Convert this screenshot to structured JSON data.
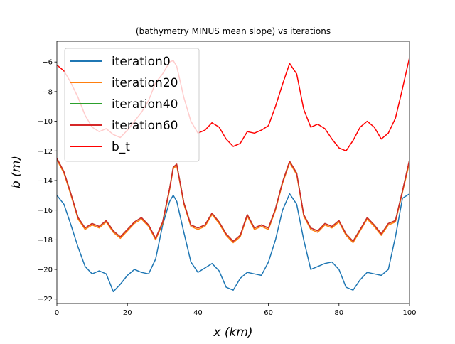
{
  "chart_data": {
    "type": "line",
    "title": "(bathymetry MINUS mean slope) vs iterations",
    "xlabel": "x (km)",
    "ylabel": "b (m)",
    "xlim": [
      0,
      100
    ],
    "ylim": [
      -22.3,
      -4.6
    ],
    "xticks": [
      0,
      20,
      40,
      60,
      80,
      100
    ],
    "yticks": [
      -22,
      -20,
      -18,
      -16,
      -14,
      -12,
      -10,
      -8,
      -6
    ],
    "ytick_labels": [
      "−22",
      "−20",
      "−18",
      "−16",
      "−14",
      "−12",
      "−10",
      "−8",
      "−6"
    ],
    "grid": false,
    "legend_position": "top-left",
    "x": [
      0,
      2,
      4,
      6,
      8,
      10,
      12,
      14,
      16,
      18,
      20,
      22,
      24,
      26,
      28,
      30,
      32,
      33,
      34,
      36,
      38,
      40,
      42,
      44,
      46,
      48,
      50,
      52,
      54,
      56,
      58,
      60,
      62,
      64,
      66,
      68,
      70,
      72,
      74,
      76,
      78,
      80,
      82,
      84,
      86,
      88,
      90,
      92,
      94,
      96,
      98,
      100
    ],
    "series": [
      {
        "name": "iteration0",
        "color": "#1f77b4",
        "values": [
          -15.0,
          -15.6,
          -17.0,
          -18.5,
          -19.8,
          -20.3,
          -20.1,
          -20.3,
          -21.5,
          -21.0,
          -20.4,
          -20.0,
          -20.2,
          -20.3,
          -19.3,
          -17.0,
          -15.4,
          -15.0,
          -15.4,
          -17.5,
          -19.5,
          -20.2,
          -19.9,
          -19.6,
          -20.1,
          -21.2,
          -21.4,
          -20.6,
          -20.2,
          -20.3,
          -20.4,
          -19.5,
          -18.0,
          -16.0,
          -14.9,
          -15.6,
          -18.0,
          -20.0,
          -19.8,
          -19.6,
          -19.5,
          -20.0,
          -21.2,
          -21.4,
          -20.7,
          -20.2,
          -20.3,
          -20.4,
          -20.0,
          -17.8,
          -15.2,
          -14.9
        ]
      },
      {
        "name": "iteration20",
        "color": "#ff7f0e",
        "values": [
          -12.6,
          -13.5,
          -15.0,
          -16.6,
          -17.3,
          -17.0,
          -17.2,
          -16.8,
          -17.5,
          -17.9,
          -17.4,
          -16.9,
          -16.6,
          -17.1,
          -18.0,
          -16.9,
          -14.6,
          -13.2,
          -13.0,
          -15.6,
          -17.1,
          -17.3,
          -17.1,
          -16.3,
          -16.9,
          -17.7,
          -18.2,
          -17.8,
          -16.4,
          -17.3,
          -17.1,
          -17.3,
          -16.0,
          -14.2,
          -12.8,
          -13.6,
          -16.4,
          -17.3,
          -17.5,
          -17.0,
          -17.2,
          -16.8,
          -17.7,
          -18.2,
          -17.4,
          -16.6,
          -17.1,
          -17.7,
          -17.0,
          -16.8,
          -14.8,
          -12.8
        ]
      },
      {
        "name": "iteration40",
        "color": "#2ca02c",
        "values": [
          -12.5,
          -13.4,
          -14.9,
          -16.5,
          -17.2,
          -16.9,
          -17.1,
          -16.7,
          -17.4,
          -17.8,
          -17.3,
          -16.8,
          -16.5,
          -17.0,
          -17.9,
          -16.8,
          -14.5,
          -13.1,
          -12.9,
          -15.5,
          -17.0,
          -17.2,
          -17.0,
          -16.2,
          -16.8,
          -17.6,
          -18.1,
          -17.7,
          -16.3,
          -17.2,
          -17.0,
          -17.2,
          -15.9,
          -14.1,
          -12.7,
          -13.5,
          -16.3,
          -17.2,
          -17.4,
          -16.9,
          -17.1,
          -16.7,
          -17.6,
          -18.1,
          -17.3,
          -16.5,
          -17.0,
          -17.6,
          -16.9,
          -16.7,
          -14.7,
          -12.6
        ]
      },
      {
        "name": "iteration60",
        "color": "#d62728",
        "values": [
          -12.5,
          -13.4,
          -14.9,
          -16.5,
          -17.2,
          -16.9,
          -17.1,
          -16.7,
          -17.4,
          -17.8,
          -17.3,
          -16.8,
          -16.5,
          -17.0,
          -17.9,
          -16.8,
          -14.5,
          -13.1,
          -12.9,
          -15.5,
          -17.0,
          -17.2,
          -17.0,
          -16.2,
          -16.8,
          -17.6,
          -18.1,
          -17.7,
          -16.3,
          -17.2,
          -17.0,
          -17.2,
          -15.9,
          -14.1,
          -12.7,
          -13.5,
          -16.3,
          -17.2,
          -17.4,
          -16.9,
          -17.1,
          -16.7,
          -17.6,
          -18.1,
          -17.3,
          -16.5,
          -17.0,
          -17.6,
          -16.9,
          -16.7,
          -14.7,
          -12.6
        ]
      },
      {
        "name": "b_t",
        "color": "#ff0000",
        "values": [
          -6.2,
          -6.6,
          -7.4,
          -8.4,
          -9.6,
          -10.4,
          -10.7,
          -10.5,
          -10.9,
          -11.1,
          -10.6,
          -10.0,
          -9.4,
          -8.6,
          -7.4,
          -6.8,
          -6.0,
          -5.9,
          -6.3,
          -8.4,
          -10.0,
          -10.8,
          -10.6,
          -10.1,
          -10.4,
          -11.2,
          -11.7,
          -11.5,
          -10.7,
          -10.8,
          -10.6,
          -10.3,
          -9.0,
          -7.5,
          -6.1,
          -6.8,
          -9.2,
          -10.4,
          -10.2,
          -10.5,
          -11.2,
          -11.8,
          -12.0,
          -11.3,
          -10.4,
          -10.0,
          -10.4,
          -11.2,
          -10.8,
          -9.8,
          -7.8,
          -5.7
        ]
      }
    ]
  }
}
